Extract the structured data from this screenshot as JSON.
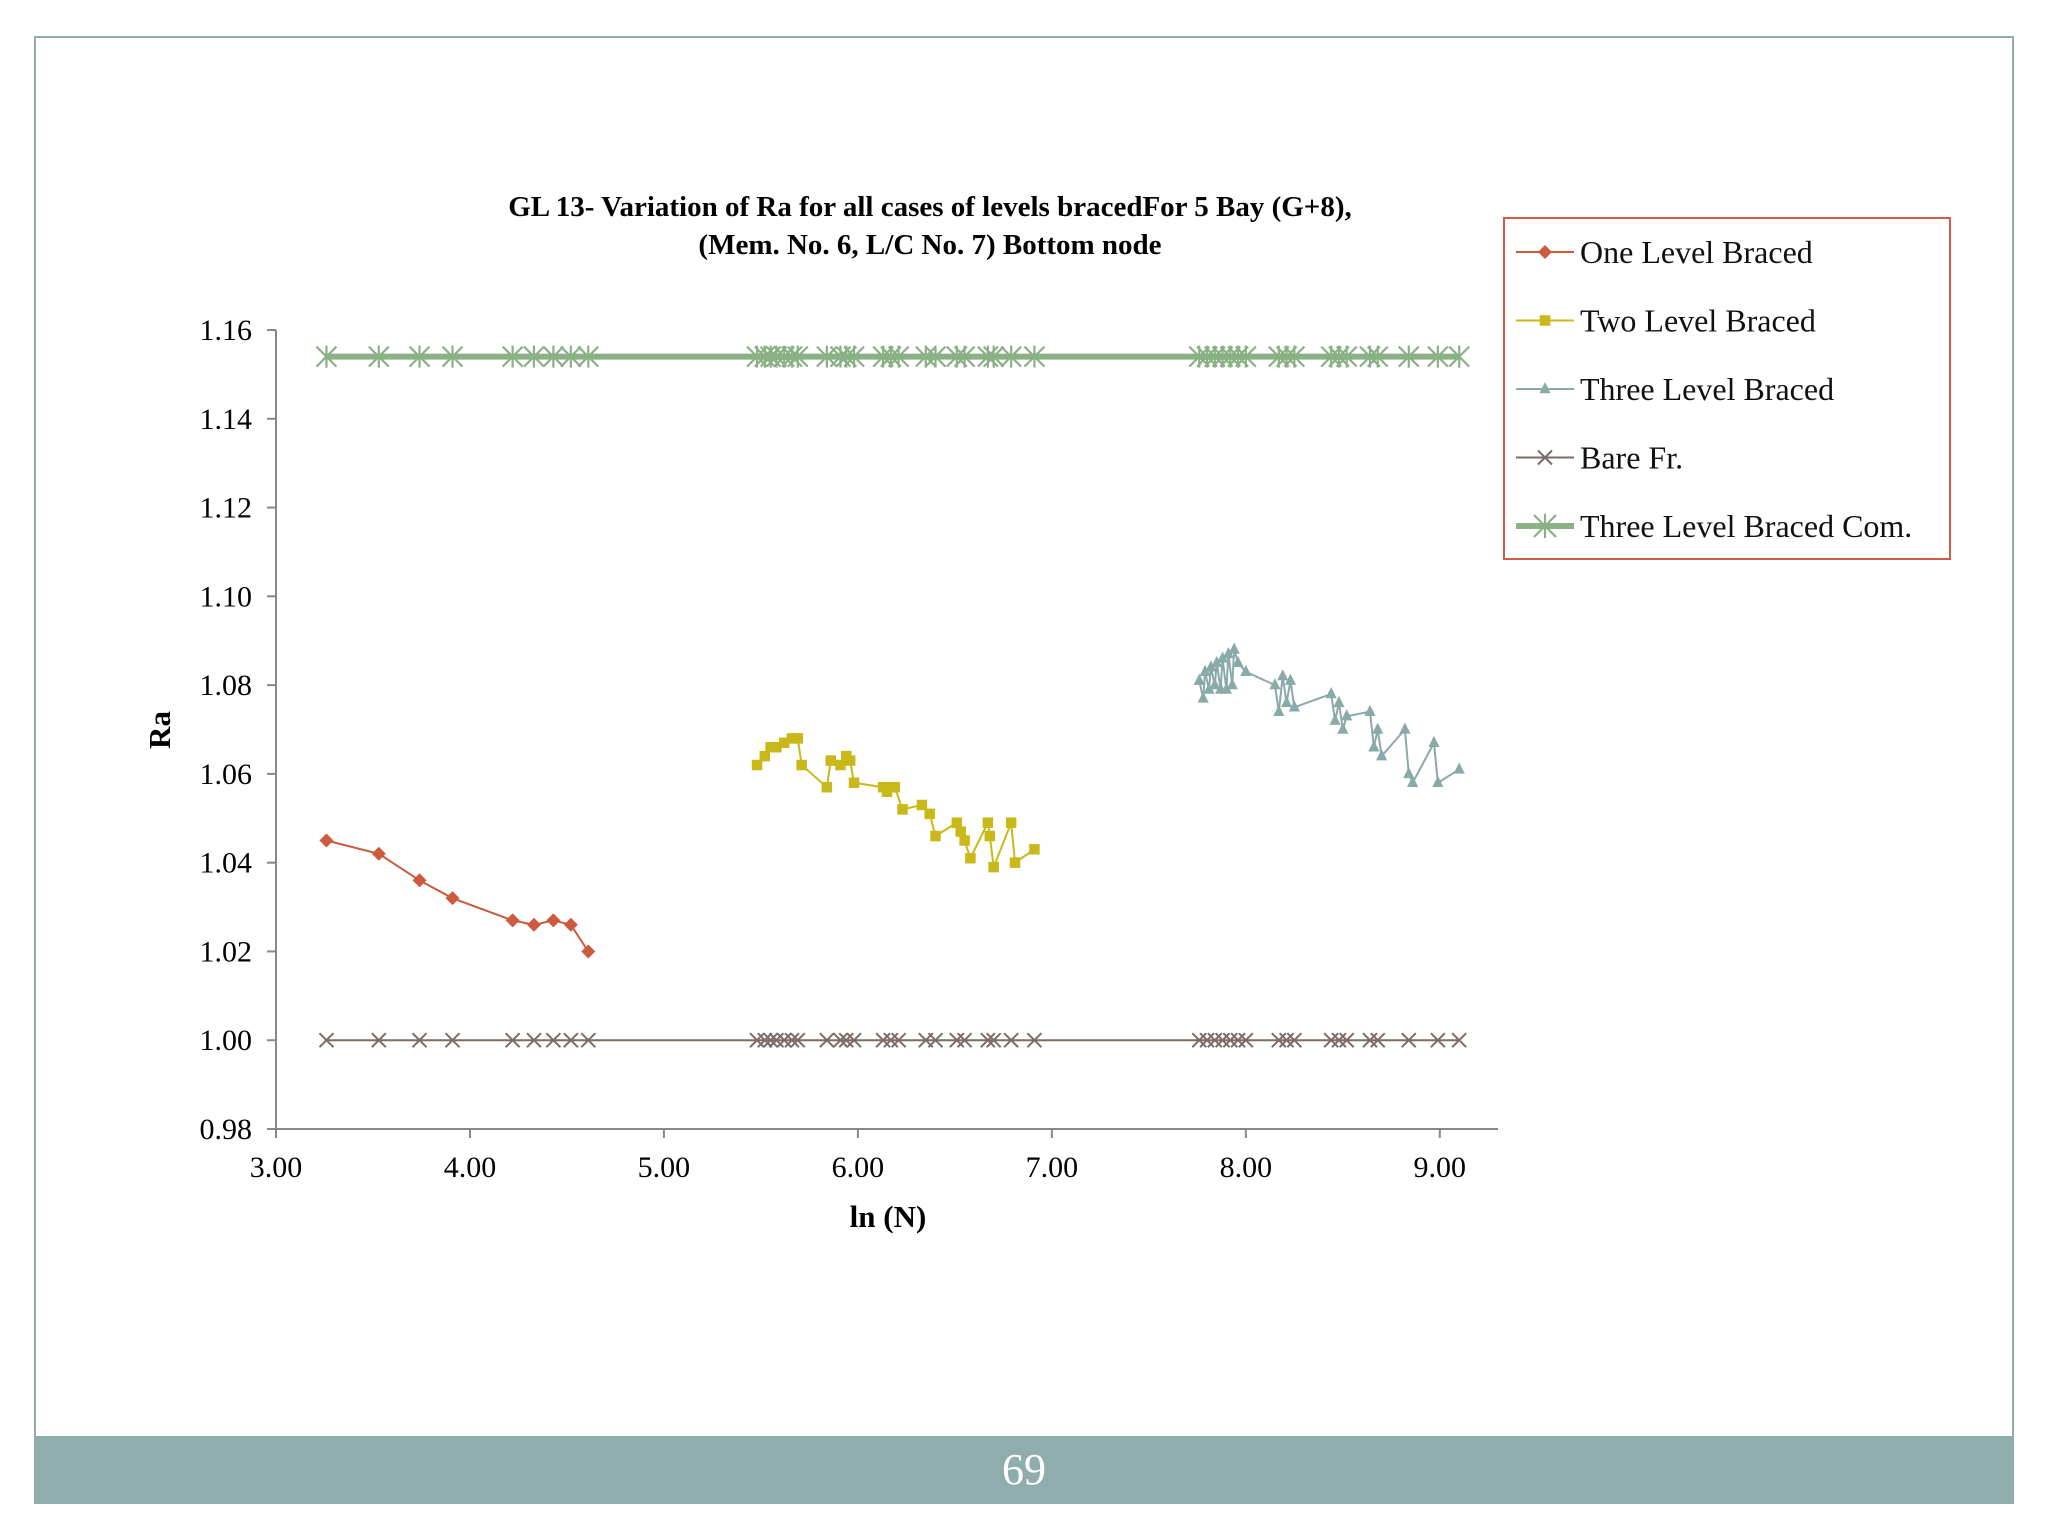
{
  "colors": {
    "one": "#cc5a3c",
    "two": "#c9b81a",
    "three": "#8aa9a9",
    "bare": "#7d6b66",
    "com": "#8ab085",
    "legend_border": "#d45a45",
    "footer": "#8fadad"
  },
  "footer": {
    "page_number": "69"
  },
  "chart_data": {
    "type": "scatter",
    "title_lines": [
      "GL 13- Variation of Ra for all cases of levels bracedFor 5 Bay (G+8),",
      "(Mem. No. 6, L/C No. 7) Bottom node"
    ],
    "xlabel": "ln (N)",
    "ylabel": "Ra",
    "xlim": [
      3.0,
      9.3
    ],
    "ylim": [
      0.98,
      1.16
    ],
    "x_ticks": [
      3.0,
      4.0,
      5.0,
      6.0,
      7.0,
      8.0,
      9.0
    ],
    "x_tick_labels": [
      "3.00",
      "4.00",
      "5.00",
      "6.00",
      "7.00",
      "8.00",
      "9.00"
    ],
    "y_ticks": [
      0.98,
      1.0,
      1.02,
      1.04,
      1.06,
      1.08,
      1.1,
      1.12,
      1.14,
      1.16
    ],
    "y_tick_labels": [
      "0.98",
      "1.00",
      "1.02",
      "1.04",
      "1.06",
      "1.08",
      "1.10",
      "1.12",
      "1.14",
      "1.16"
    ],
    "legend_position": "right",
    "series": [
      {
        "name": "One Level Braced",
        "marker": "diamond",
        "color_key": "one",
        "x": [
          3.26,
          3.53,
          3.74,
          3.91,
          4.22,
          4.33,
          4.43,
          4.52,
          4.61
        ],
        "y": [
          1.045,
          1.042,
          1.036,
          1.032,
          1.027,
          1.026,
          1.027,
          1.026,
          1.02
        ]
      },
      {
        "name": "Two Level Braced",
        "marker": "square",
        "color_key": "two",
        "x": [
          5.48,
          5.52,
          5.55,
          5.58,
          5.62,
          5.66,
          5.69,
          5.71,
          5.84,
          5.86,
          5.91,
          5.94,
          5.96,
          5.98,
          6.13,
          6.15,
          6.17,
          6.19,
          6.23,
          6.33,
          6.37,
          6.4,
          6.51,
          6.53,
          6.55,
          6.58,
          6.67,
          6.68,
          6.7,
          6.79,
          6.81,
          6.91
        ],
        "y": [
          1.062,
          1.064,
          1.066,
          1.066,
          1.067,
          1.068,
          1.068,
          1.062,
          1.057,
          1.063,
          1.062,
          1.064,
          1.063,
          1.058,
          1.057,
          1.056,
          1.057,
          1.057,
          1.052,
          1.053,
          1.051,
          1.046,
          1.049,
          1.047,
          1.045,
          1.041,
          1.049,
          1.046,
          1.039,
          1.049,
          1.04,
          1.043
        ]
      },
      {
        "name": "Three Level Braced",
        "marker": "triangle",
        "color_key": "three",
        "x": [
          7.76,
          7.78,
          7.79,
          7.81,
          7.82,
          7.84,
          7.85,
          7.87,
          7.88,
          7.9,
          7.91,
          7.93,
          7.94,
          7.96,
          8.0,
          8.15,
          8.17,
          8.19,
          8.21,
          8.23,
          8.25,
          8.44,
          8.46,
          8.48,
          8.5,
          8.52,
          8.64,
          8.66,
          8.68,
          8.7,
          8.82,
          8.84,
          8.86,
          8.97,
          8.99,
          9.1
        ],
        "y": [
          1.081,
          1.077,
          1.083,
          1.079,
          1.084,
          1.08,
          1.085,
          1.079,
          1.086,
          1.079,
          1.087,
          1.08,
          1.088,
          1.085,
          1.083,
          1.08,
          1.074,
          1.082,
          1.076,
          1.081,
          1.075,
          1.078,
          1.072,
          1.076,
          1.07,
          1.073,
          1.074,
          1.066,
          1.07,
          1.064,
          1.07,
          1.06,
          1.058,
          1.067,
          1.058,
          1.061
        ]
      },
      {
        "name": "Bare Fr.",
        "marker": "x",
        "color_key": "bare",
        "x": [
          3.26,
          3.53,
          3.74,
          3.91,
          4.22,
          4.33,
          4.43,
          4.52,
          4.61,
          5.48,
          5.52,
          5.55,
          5.58,
          5.62,
          5.66,
          5.69,
          5.84,
          5.91,
          5.94,
          5.98,
          6.13,
          6.17,
          6.21,
          6.35,
          6.4,
          6.51,
          6.55,
          6.67,
          6.7,
          6.79,
          6.91,
          7.76,
          7.8,
          7.84,
          7.88,
          7.92,
          7.96,
          8.0,
          8.17,
          8.21,
          8.25,
          8.44,
          8.48,
          8.52,
          8.64,
          8.68,
          8.84,
          8.99,
          9.1
        ],
        "y": [
          1.0,
          1.0,
          1.0,
          1.0,
          1.0,
          1.0,
          1.0,
          1.0,
          1.0,
          1.0,
          1.0,
          1.0,
          1.0,
          1.0,
          1.0,
          1.0,
          1.0,
          1.0,
          1.0,
          1.0,
          1.0,
          1.0,
          1.0,
          1.0,
          1.0,
          1.0,
          1.0,
          1.0,
          1.0,
          1.0,
          1.0,
          1.0,
          1.0,
          1.0,
          1.0,
          1.0,
          1.0,
          1.0,
          1.0,
          1.0,
          1.0,
          1.0,
          1.0,
          1.0,
          1.0,
          1.0,
          1.0,
          1.0,
          1.0
        ]
      },
      {
        "name": "Three Level Braced Com.",
        "marker": "asterisk",
        "color_key": "com",
        "x": [
          3.26,
          3.53,
          3.74,
          3.91,
          4.22,
          4.33,
          4.43,
          4.52,
          4.61,
          5.48,
          5.52,
          5.55,
          5.58,
          5.62,
          5.66,
          5.69,
          5.84,
          5.91,
          5.94,
          5.98,
          6.13,
          6.17,
          6.21,
          6.35,
          6.4,
          6.51,
          6.55,
          6.67,
          6.7,
          6.79,
          6.91,
          7.76,
          7.8,
          7.84,
          7.88,
          7.92,
          7.96,
          8.0,
          8.17,
          8.21,
          8.25,
          8.44,
          8.48,
          8.52,
          8.64,
          8.68,
          8.84,
          8.99,
          9.1
        ],
        "y": [
          1.154,
          1.154,
          1.154,
          1.154,
          1.154,
          1.154,
          1.154,
          1.154,
          1.154,
          1.154,
          1.154,
          1.154,
          1.154,
          1.154,
          1.154,
          1.154,
          1.154,
          1.154,
          1.154,
          1.154,
          1.154,
          1.154,
          1.154,
          1.154,
          1.154,
          1.154,
          1.154,
          1.154,
          1.154,
          1.154,
          1.154,
          1.154,
          1.154,
          1.154,
          1.154,
          1.154,
          1.154,
          1.154,
          1.154,
          1.154,
          1.154,
          1.154,
          1.154,
          1.154,
          1.154,
          1.154,
          1.154,
          1.154,
          1.154
        ]
      }
    ]
  }
}
